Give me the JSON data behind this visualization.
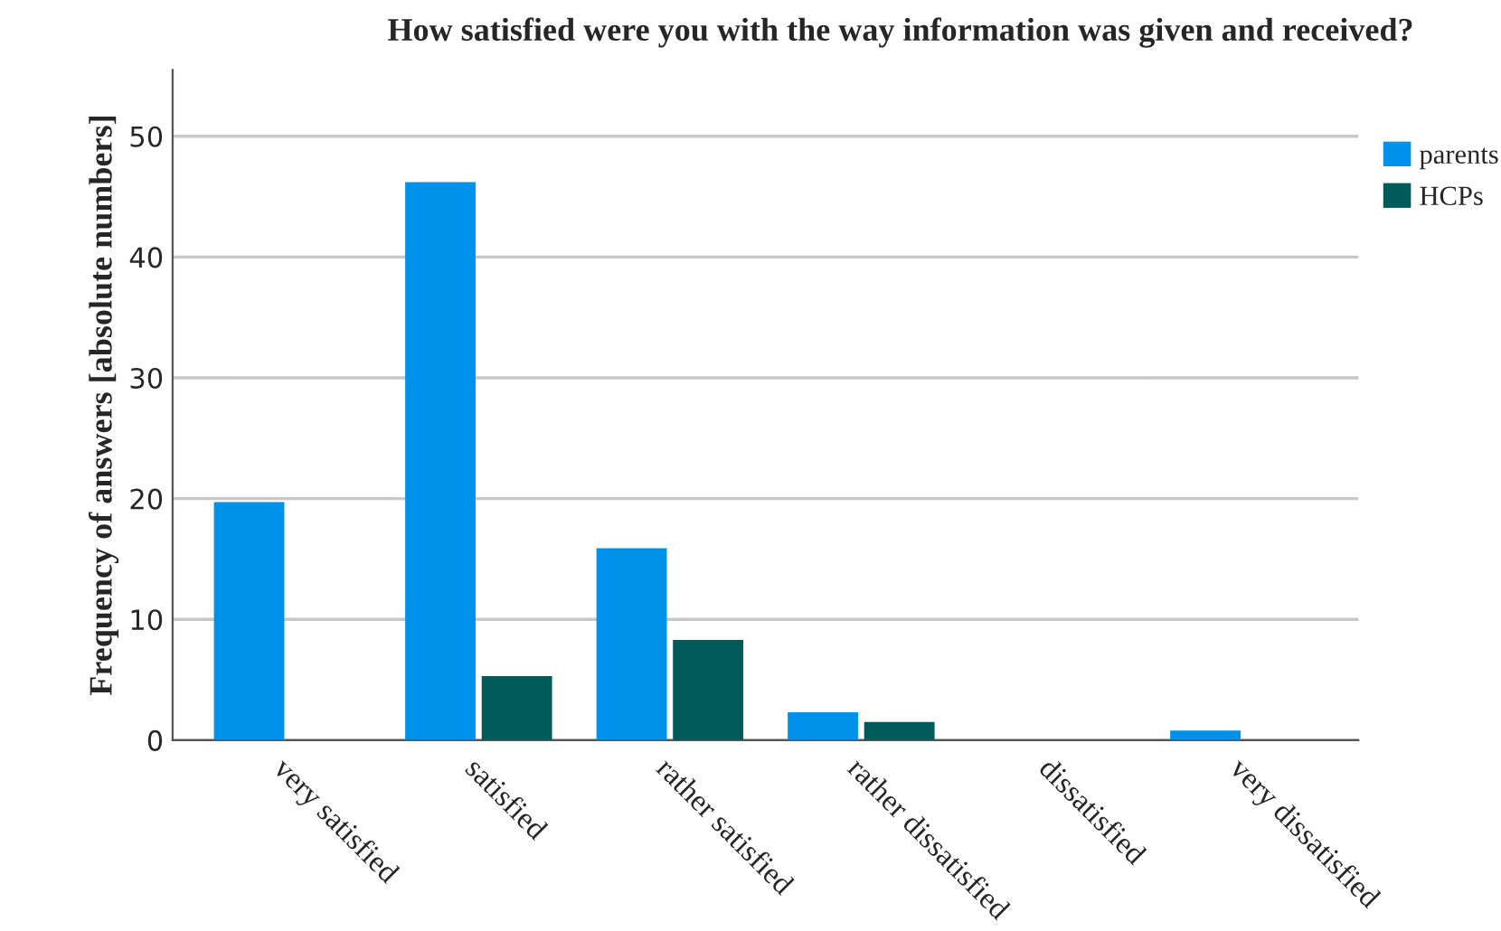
{
  "chart_data": {
    "type": "bar",
    "title": "How satisfied were you with the way information was given and received?",
    "ylabel": "Frequency of answers [absolute numbers]",
    "categories": [
      "very satisfied",
      "satisfied",
      "rather satisfied",
      "rather dissatisfied",
      "dissatisfied",
      "very dissatisfied"
    ],
    "series": [
      {
        "name": "parents",
        "color": "#0091ea",
        "values": [
          19.7,
          46.2,
          15.9,
          2.3,
          0,
          0.8
        ]
      },
      {
        "name": "HCPs",
        "color": "#005a5a",
        "values": [
          0,
          5.3,
          8.3,
          1.5,
          0,
          0
        ]
      }
    ],
    "ylim": [
      0,
      55.5
    ],
    "yticks": [
      0,
      10,
      20,
      30,
      40,
      50
    ],
    "grid": "y",
    "legend": "top right"
  }
}
